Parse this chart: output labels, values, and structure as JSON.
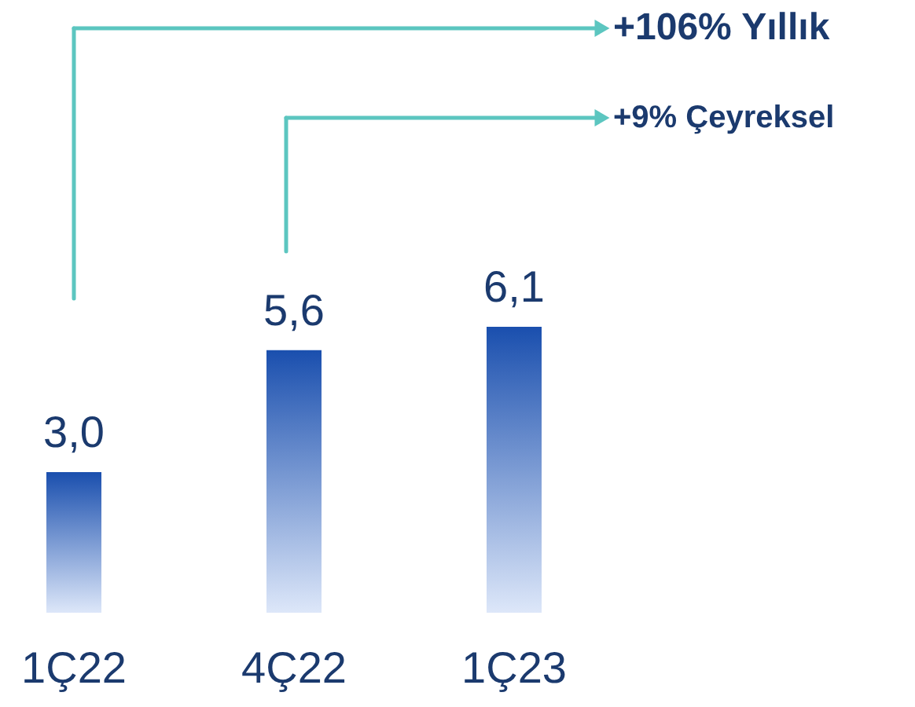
{
  "chart_data": {
    "type": "bar",
    "categories": [
      "1Ç22",
      "4Ç22",
      "1Ç23"
    ],
    "values": [
      3.0,
      5.6,
      6.1
    ],
    "value_labels": [
      "3,0",
      "5,6",
      "6,1"
    ],
    "color": "#1a4fae",
    "annotations": [
      "+106% Yıllık",
      "+9% Çeyreksel"
    ]
  }
}
